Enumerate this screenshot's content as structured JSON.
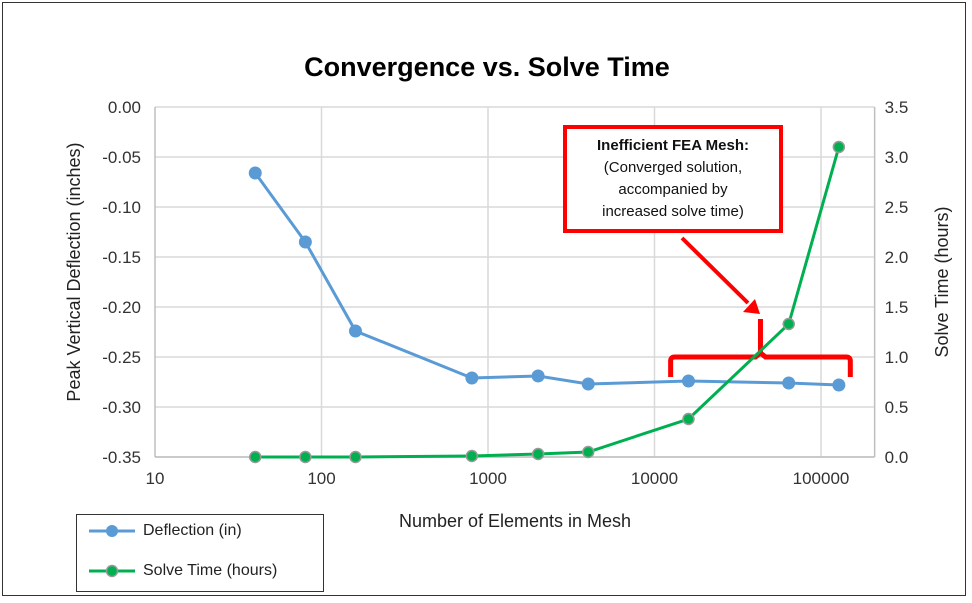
{
  "chart_data": {
    "type": "line",
    "title": "Convergence vs. Solve Time",
    "xlabel": "Number of Elements in Mesh",
    "ylabel": "Peak Vertical Deflection (inches)",
    "y2label": "Solve Time (hours)",
    "xscale": "log",
    "xlim": [
      10,
      210000
    ],
    "ylim": [
      -0.35,
      0.0
    ],
    "y2lim": [
      0,
      3.5
    ],
    "grid": true,
    "legend_placement": "bottom-left",
    "x_ticks": [
      10,
      100,
      1000,
      10000,
      100000
    ],
    "x_tick_labels": [
      "10",
      "100",
      "1000",
      "10000",
      "100000"
    ],
    "y_ticks": [
      0.0,
      -0.05,
      -0.1,
      -0.15,
      -0.2,
      -0.25,
      -0.3,
      -0.35
    ],
    "y_tick_labels": [
      "0.00",
      "-0.05",
      "-0.10",
      "-0.15",
      "-0.20",
      "-0.25",
      "-0.30",
      "-0.35"
    ],
    "y2_ticks": [
      3.5,
      3.0,
      2.5,
      2.0,
      1.5,
      1.0,
      0.5,
      0.0
    ],
    "y2_tick_labels": [
      "3.5",
      "3.0",
      "2.5",
      "2.0",
      "1.5",
      "1.0",
      "0.5",
      "0.0"
    ],
    "x": [
      40,
      80,
      160,
      800,
      2000,
      4000,
      16000,
      64000,
      128000
    ],
    "series": [
      {
        "name": "Deflection (in)",
        "axis": "left",
        "color": "#5b9bd5",
        "values": [
          -0.066,
          -0.135,
          -0.224,
          -0.271,
          -0.269,
          -0.277,
          -0.274,
          -0.276,
          -0.278
        ]
      },
      {
        "name": "Solve Time (hours)",
        "axis": "right",
        "color": "#00b050",
        "values": [
          0.0,
          0.0,
          0.0,
          0.01,
          0.03,
          0.05,
          0.38,
          1.33,
          3.1
        ]
      }
    ],
    "annotation": {
      "title": "Inefficient FEA Mesh:",
      "lines": [
        "(Converged solution,",
        "accompanied by",
        "increased solve time)"
      ],
      "color": "#ff0000",
      "bracket_x_range": [
        12500,
        150000
      ]
    }
  }
}
